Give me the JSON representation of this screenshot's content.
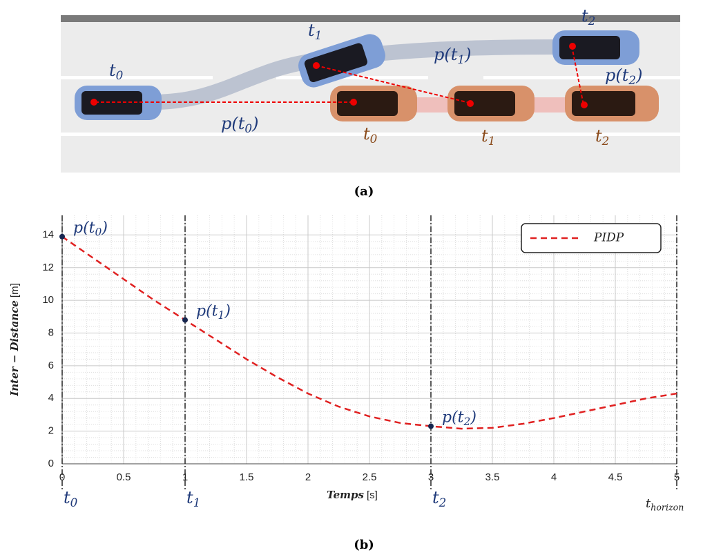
{
  "figure_a": {
    "caption": "(a)",
    "labels": [
      {
        "text": "t",
        "sub": "0"
      },
      {
        "text": "t",
        "sub": "1"
      },
      {
        "text": "t",
        "sub": "2"
      },
      {
        "text": "p(t",
        "sub": "0",
        "after": ")"
      },
      {
        "text": "p(t",
        "sub": "1",
        "after": ")"
      },
      {
        "text": "p(t",
        "sub": "2",
        "after": ")"
      },
      {
        "text": "t",
        "sub": "0"
      },
      {
        "text": "t",
        "sub": "1"
      },
      {
        "text": "t",
        "sub": "2"
      }
    ]
  },
  "chart_data": {
    "type": "line",
    "x_label": {
      "text": "Temps",
      "unit": "[s]"
    },
    "y_label": {
      "text": "Inter − Distance",
      "unit": "[m]"
    },
    "x": [
      0,
      0.25,
      0.5,
      0.75,
      1,
      1.25,
      1.5,
      1.75,
      2,
      2.25,
      2.5,
      2.75,
      3,
      3.25,
      3.5,
      3.75,
      4,
      4.25,
      4.5,
      4.75,
      5
    ],
    "series": [
      {
        "name": "PIDP",
        "color": "#e02020",
        "values": [
          13.9,
          12.6,
          11.3,
          10.0,
          8.8,
          7.6,
          6.4,
          5.3,
          4.3,
          3.5,
          2.9,
          2.5,
          2.3,
          2.15,
          2.2,
          2.45,
          2.8,
          3.2,
          3.6,
          4.0,
          4.3
        ]
      }
    ],
    "points": [
      {
        "x": 0,
        "y": 13.9,
        "label": {
          "text": "p(t",
          "sub": "0",
          "after": ")"
        }
      },
      {
        "x": 1,
        "y": 8.8,
        "label": {
          "text": "p(t",
          "sub": "1",
          "after": ")"
        }
      },
      {
        "x": 3,
        "y": 2.3,
        "label": {
          "text": "p(t",
          "sub": "2",
          "after": ")"
        }
      }
    ],
    "time_markers": [
      {
        "x": 0,
        "label": {
          "text": "t",
          "sub": "0"
        }
      },
      {
        "x": 1,
        "label": {
          "text": "t",
          "sub": "1"
        }
      },
      {
        "x": 3,
        "label": {
          "text": "t",
          "sub": "2"
        }
      },
      {
        "x": 5,
        "label": {
          "text": "t",
          "sub": "horizon"
        }
      }
    ],
    "xlim": [
      0,
      5
    ],
    "ylim": [
      0,
      15.2
    ],
    "xticks": [
      0,
      0.5,
      1,
      1.5,
      2,
      2.5,
      3,
      3.5,
      4,
      4.5,
      5
    ],
    "yticks": [
      0,
      2,
      4,
      6,
      8,
      10,
      12,
      14
    ],
    "grid": true,
    "legend": "top-right",
    "caption": "(b)"
  }
}
